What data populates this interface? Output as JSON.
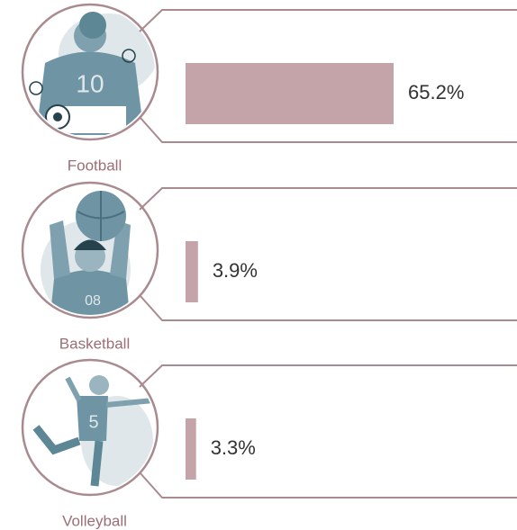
{
  "chart_data": {
    "type": "bar",
    "orientation": "horizontal",
    "categories": [
      "Football",
      "Basketball",
      "Volleyball"
    ],
    "values": [
      65.2,
      3.9,
      3.3
    ],
    "value_labels": [
      "65.2%",
      "3.9%",
      "3.3%"
    ],
    "color": "#c4a4a8"
  }
}
